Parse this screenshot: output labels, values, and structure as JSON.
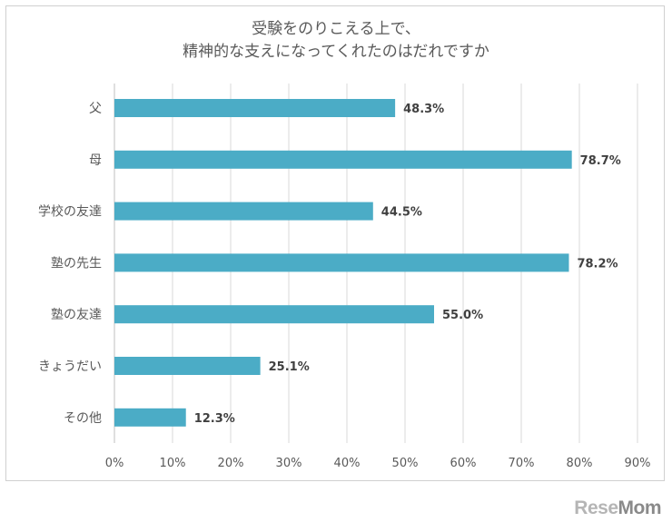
{
  "chart_data": {
    "type": "bar",
    "orientation": "horizontal",
    "title": [
      "受験をのりこえる上で、",
      "精神的な支えになってくれたのはだれですか"
    ],
    "categories": [
      "父",
      "母",
      "学校の友達",
      "塾の先生",
      "塾の友達",
      "きょうだい",
      "その他"
    ],
    "values": [
      48.3,
      78.7,
      44.5,
      78.2,
      55.0,
      25.1,
      12.3
    ],
    "value_labels": [
      "48.3%",
      "78.7%",
      "44.5%",
      "78.2%",
      "55.0%",
      "25.1%",
      "12.3%"
    ],
    "x_ticks": [
      "0%",
      "10%",
      "20%",
      "30%",
      "40%",
      "50%",
      "60%",
      "70%",
      "80%",
      "90%"
    ],
    "xlim": [
      0,
      90
    ],
    "grid": true,
    "bar_color": "#4BACC6",
    "gridline_color": "#d9d9d9",
    "label_color": "#595959"
  },
  "watermark": {
    "part1": "Rese",
    "part2": "Mom"
  }
}
